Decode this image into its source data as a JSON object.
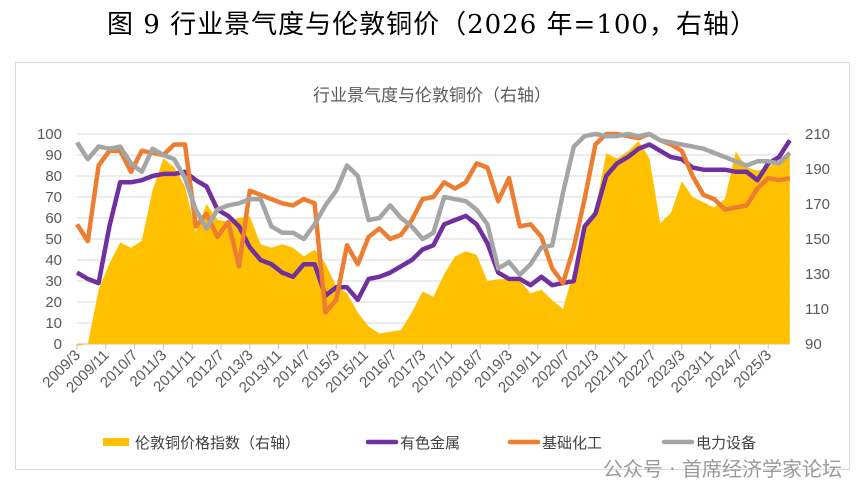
{
  "figure_title": "图 9  行业景气度与伦敦铜价（2026 年=100，右轴）",
  "watermark": "公众号 · 首席经济学家论坛",
  "chart_data": {
    "type": "line",
    "title": "行业景气度与伦敦铜价（右轴）",
    "x_tick_labels": [
      "2009/3",
      "2009/11",
      "2010/7",
      "2011/3",
      "2011/11",
      "2012/7",
      "2013/3",
      "2013/11",
      "2014/7",
      "2015/3",
      "2015/11",
      "2016/7",
      "2017/3",
      "2017/11",
      "2018/7",
      "2019/3",
      "2019/11",
      "2020/7",
      "2021/3",
      "2021/11",
      "2022/7",
      "2023/3",
      "2023/11",
      "2024/7",
      "2025/3"
    ],
    "x_start": "2009/3",
    "x_end": "2025/9",
    "x_frequency": "quarterly",
    "y_left": {
      "range": [
        0,
        100
      ],
      "ticks": [
        0,
        10,
        20,
        30,
        40,
        50,
        60,
        70,
        80,
        90,
        100
      ]
    },
    "y_right": {
      "range": [
        90,
        210
      ],
      "ticks": [
        90,
        110,
        130,
        150,
        170,
        190,
        210
      ]
    },
    "grid": true,
    "legend_position": "bottom",
    "series": [
      {
        "name": "伦敦铜价格指数（右轴）",
        "type": "area",
        "axis": "right",
        "color": "#FFC000",
        "values": [
          89,
          90,
          121,
          136,
          148,
          145,
          149,
          178,
          196,
          191,
          180,
          154,
          170,
          161,
          160,
          162,
          163,
          147,
          145,
          147,
          145,
          140,
          144,
          136,
          123,
          119,
          108,
          100,
          96,
          97,
          98,
          108,
          120,
          117,
          130,
          140,
          143,
          141,
          126,
          127,
          127,
          126,
          119,
          121,
          115,
          110,
          132,
          159,
          167,
          199,
          196,
          200,
          206,
          196,
          159,
          165,
          183,
          174,
          171,
          168,
          173,
          200,
          191,
          189,
          191,
          195,
          199
        ]
      },
      {
        "name": "有色金属",
        "type": "line",
        "axis": "left",
        "color": "#7030A0",
        "values": [
          34,
          31,
          29,
          56,
          77,
          77,
          78,
          80,
          81,
          81,
          82,
          78,
          75,
          64,
          61,
          56,
          46,
          40,
          38,
          34,
          32,
          38,
          38,
          23,
          27,
          27,
          21,
          31,
          32,
          34,
          37,
          40,
          45,
          47,
          57,
          59,
          61,
          57,
          48,
          34,
          31,
          31,
          28,
          32,
          28,
          29,
          30,
          56,
          62,
          80,
          86,
          89,
          93,
          95,
          92,
          89,
          88,
          84,
          83,
          83,
          83,
          82,
          82,
          78,
          86,
          89,
          97
        ]
      },
      {
        "name": "基础化工",
        "type": "line",
        "axis": "left",
        "color": "#ED7D31",
        "values": [
          57,
          49,
          85,
          92,
          92,
          82,
          92,
          91,
          90,
          95,
          95,
          56,
          62,
          51,
          58,
          37,
          73,
          71,
          69,
          67,
          66,
          69,
          67,
          15,
          21,
          47,
          38,
          51,
          55,
          50,
          52,
          59,
          69,
          70,
          77,
          74,
          77,
          86,
          84,
          68,
          79,
          56,
          57,
          51,
          36,
          29,
          46,
          69,
          95,
          100,
          100,
          99,
          98,
          100,
          97,
          95,
          92,
          80,
          71,
          69,
          64,
          65,
          66,
          74,
          79,
          78,
          79
        ]
      },
      {
        "name": "电力设备",
        "type": "line",
        "axis": "left",
        "color": "#A5A5A5",
        "values": [
          96,
          88,
          94,
          93,
          94,
          86,
          82,
          93,
          90,
          88,
          79,
          64,
          55,
          64,
          66,
          67,
          69,
          69,
          56,
          53,
          53,
          50,
          57,
          66,
          73,
          85,
          80,
          59,
          60,
          66,
          60,
          56,
          50,
          53,
          70,
          69,
          68,
          64,
          57,
          36,
          39,
          33,
          38,
          46,
          47,
          72,
          94,
          99,
          100,
          99,
          99,
          100,
          99,
          100,
          97,
          96,
          95,
          94,
          93,
          91,
          89,
          87,
          85,
          87,
          87,
          86,
          91
        ]
      }
    ]
  }
}
